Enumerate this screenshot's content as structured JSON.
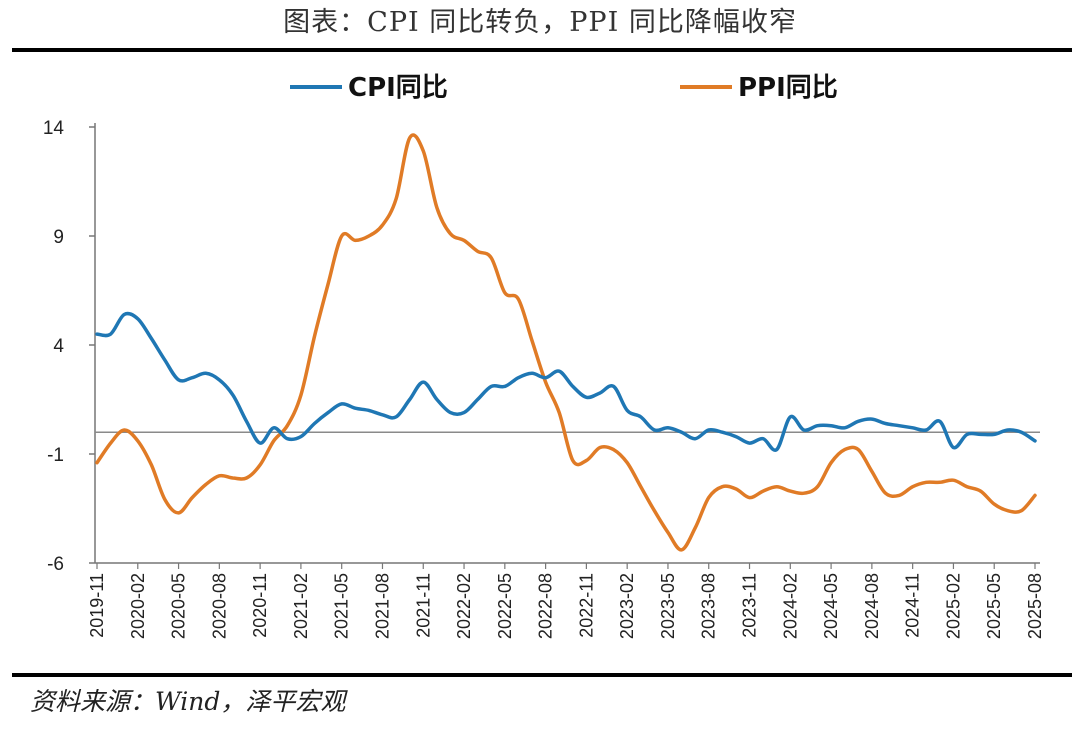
{
  "title": "图表：CPI 同比转负，PPI 同比降幅收窄",
  "source": "资料来源：Wind，泽平宏观",
  "chart_data": {
    "type": "line",
    "ylim": [
      -6,
      14
    ],
    "yticks": [
      14,
      9,
      4,
      -1,
      -6
    ],
    "x": [
      "2019-11",
      "2019-12",
      "2020-01",
      "2020-02",
      "2020-03",
      "2020-04",
      "2020-05",
      "2020-06",
      "2020-07",
      "2020-08",
      "2020-09",
      "2020-10",
      "2020-11",
      "2020-12",
      "2021-01",
      "2021-02",
      "2021-03",
      "2021-04",
      "2021-05",
      "2021-06",
      "2021-07",
      "2021-08",
      "2021-09",
      "2021-10",
      "2021-11",
      "2021-12",
      "2022-01",
      "2022-02",
      "2022-03",
      "2022-04",
      "2022-05",
      "2022-06",
      "2022-07",
      "2022-08",
      "2022-09",
      "2022-10",
      "2022-11",
      "2022-12",
      "2023-01",
      "2023-02",
      "2023-03",
      "2023-04",
      "2023-05",
      "2023-06",
      "2023-07",
      "2023-08",
      "2023-09",
      "2023-10",
      "2023-11",
      "2023-12",
      "2024-01",
      "2024-02",
      "2024-03",
      "2024-04",
      "2024-05",
      "2024-06",
      "2024-07",
      "2024-08",
      "2024-09",
      "2024-10",
      "2024-11",
      "2024-12",
      "2025-01",
      "2025-02",
      "2025-03",
      "2025-04",
      "2025-05",
      "2025-06",
      "2025-07",
      "2025-08"
    ],
    "xtick_labels": [
      "2019-11",
      "2020-02",
      "2020-05",
      "2020-08",
      "2020-11",
      "2021-02",
      "2021-05",
      "2021-08",
      "2021-11",
      "2022-02",
      "2022-05",
      "2022-08",
      "2022-11",
      "2023-02",
      "2023-05",
      "2023-08",
      "2023-11",
      "2024-02",
      "2024-05",
      "2024-08",
      "2024-11",
      "2025-02",
      "2025-05",
      "2025-08"
    ],
    "zero_line": 0,
    "legend_position": "top",
    "series": [
      {
        "name": "CPI同比",
        "color": "#1f77b4",
        "values": [
          4.5,
          4.5,
          5.4,
          5.2,
          4.3,
          3.3,
          2.4,
          2.5,
          2.7,
          2.4,
          1.7,
          0.5,
          -0.5,
          0.2,
          -0.3,
          -0.2,
          0.4,
          0.9,
          1.3,
          1.1,
          1.0,
          0.8,
          0.7,
          1.5,
          2.3,
          1.5,
          0.9,
          0.9,
          1.5,
          2.1,
          2.1,
          2.5,
          2.7,
          2.5,
          2.8,
          2.1,
          1.6,
          1.8,
          2.1,
          1.0,
          0.7,
          0.1,
          0.2,
          0.0,
          -0.3,
          0.1,
          0.0,
          -0.2,
          -0.5,
          -0.3,
          -0.8,
          0.7,
          0.1,
          0.3,
          0.3,
          0.2,
          0.5,
          0.6,
          0.4,
          0.3,
          0.2,
          0.1,
          0.5,
          -0.7,
          -0.1,
          -0.1,
          -0.1,
          0.1,
          0.0,
          -0.4
        ]
      },
      {
        "name": "PPI同比",
        "color": "#e07b26",
        "values": [
          -1.4,
          -0.5,
          0.1,
          -0.4,
          -1.5,
          -3.1,
          -3.7,
          -3.0,
          -2.4,
          -2.0,
          -2.1,
          -2.1,
          -1.5,
          -0.4,
          0.3,
          1.7,
          4.4,
          6.8,
          9.0,
          8.8,
          9.0,
          9.5,
          10.7,
          13.5,
          12.9,
          10.3,
          9.1,
          8.8,
          8.3,
          8.0,
          6.4,
          6.1,
          4.2,
          2.3,
          0.9,
          -1.3,
          -1.3,
          -0.7,
          -0.8,
          -1.4,
          -2.5,
          -3.6,
          -4.6,
          -5.4,
          -4.4,
          -3.0,
          -2.5,
          -2.6,
          -3.0,
          -2.7,
          -2.5,
          -2.7,
          -2.8,
          -2.5,
          -1.4,
          -0.8,
          -0.8,
          -1.8,
          -2.8,
          -2.9,
          -2.5,
          -2.3,
          -2.3,
          -2.2,
          -2.5,
          -2.7,
          -3.3,
          -3.6,
          -3.6,
          -2.9
        ]
      }
    ]
  }
}
